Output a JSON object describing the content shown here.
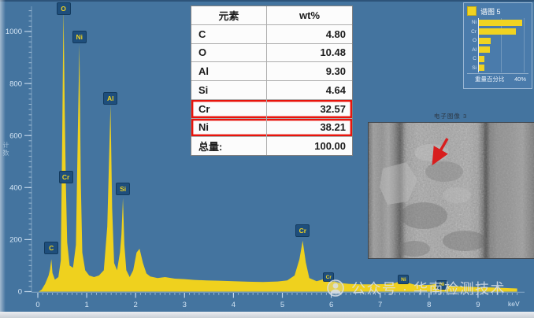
{
  "colors": {
    "background": "#44749F",
    "spectrum_fill": "#EFD11E",
    "marker_box": "#1E4E7C",
    "marker_text": "#F0D321",
    "axis": "#D3E4F4",
    "table_highlight_border": "#E8140C",
    "legend_bar": "#F0D321",
    "sem_arrow": "#D81E1E"
  },
  "chart_data": [
    {
      "type": "area",
      "xlabel": "keV",
      "ylabel": "计数",
      "xlim": [
        0,
        9.9
      ],
      "ylim": [
        0,
        1100
      ],
      "x_ticks": [
        0,
        1,
        2,
        3,
        4,
        5,
        6,
        7,
        8,
        9
      ],
      "y_ticks": [
        0,
        200,
        400,
        600,
        800,
        1000
      ],
      "grid": false,
      "series": [
        {
          "name": "谱图 5",
          "color": "#EFD11E",
          "points": [
            [
              0.02,
              0
            ],
            [
              0.08,
              8
            ],
            [
              0.15,
              30
            ],
            [
              0.22,
              62
            ],
            [
              0.25,
              85
            ],
            [
              0.277,
              125
            ],
            [
              0.3,
              72
            ],
            [
              0.35,
              46
            ],
            [
              0.42,
              56
            ],
            [
              0.47,
              120
            ],
            [
              0.5,
              600
            ],
            [
              0.525,
              1090
            ],
            [
              0.55,
              700
            ],
            [
              0.573,
              420
            ],
            [
              0.6,
              190
            ],
            [
              0.65,
              100
            ],
            [
              0.72,
              92
            ],
            [
              0.78,
              180
            ],
            [
              0.81,
              520
            ],
            [
              0.851,
              950
            ],
            [
              0.88,
              420
            ],
            [
              0.91,
              150
            ],
            [
              0.97,
              82
            ],
            [
              1.05,
              62
            ],
            [
              1.15,
              56
            ],
            [
              1.25,
              62
            ],
            [
              1.35,
              82
            ],
            [
              1.42,
              250
            ],
            [
              1.487,
              720
            ],
            [
              1.52,
              320
            ],
            [
              1.56,
              110
            ],
            [
              1.62,
              82
            ],
            [
              1.68,
              150
            ],
            [
              1.71,
              220
            ],
            [
              1.74,
              360
            ],
            [
              1.77,
              180
            ],
            [
              1.81,
              82
            ],
            [
              1.88,
              56
            ],
            [
              1.95,
              82
            ],
            [
              2.02,
              150
            ],
            [
              2.08,
              165
            ],
            [
              2.15,
              110
            ],
            [
              2.22,
              70
            ],
            [
              2.3,
              58
            ],
            [
              2.45,
              52
            ],
            [
              2.6,
              56
            ],
            [
              2.8,
              50
            ],
            [
              3.0,
              48
            ],
            [
              3.2,
              45
            ],
            [
              3.45,
              43
            ],
            [
              3.7,
              42
            ],
            [
              4.0,
              40
            ],
            [
              4.3,
              38
            ],
            [
              4.6,
              37
            ],
            [
              4.9,
              39
            ],
            [
              5.1,
              43
            ],
            [
              5.25,
              62
            ],
            [
              5.35,
              125
            ],
            [
              5.415,
              196
            ],
            [
              5.48,
              112
            ],
            [
              5.55,
              52
            ],
            [
              5.7,
              40
            ],
            [
              5.85,
              48
            ],
            [
              5.947,
              63
            ],
            [
              6.02,
              42
            ],
            [
              6.15,
              34
            ],
            [
              6.35,
              30
            ],
            [
              6.6,
              28
            ],
            [
              6.85,
              28
            ],
            [
              7.1,
              29
            ],
            [
              7.3,
              33
            ],
            [
              7.4,
              40
            ],
            [
              7.478,
              49
            ],
            [
              7.56,
              34
            ],
            [
              7.7,
              27
            ],
            [
              7.9,
              25
            ],
            [
              8.05,
              27
            ],
            [
              8.18,
              31
            ],
            [
              8.264,
              35
            ],
            [
              8.35,
              24
            ],
            [
              8.55,
              21
            ],
            [
              8.8,
              19
            ],
            [
              9.05,
              17
            ],
            [
              9.3,
              16
            ],
            [
              9.55,
              14
            ],
            [
              9.8,
              12
            ]
          ]
        }
      ],
      "peak_markers": [
        {
          "label": "C",
          "kev": 0.277,
          "counts": 168,
          "size": "lg"
        },
        {
          "label": "O",
          "kev": 0.525,
          "counts": 1088,
          "size": "lg"
        },
        {
          "label": "Cr",
          "kev": 0.573,
          "counts": 440,
          "size": "lg"
        },
        {
          "label": "Ni",
          "kev": 0.851,
          "counts": 978,
          "size": "lg"
        },
        {
          "label": "Al",
          "kev": 1.487,
          "counts": 743,
          "size": "lg"
        },
        {
          "label": "Si",
          "kev": 1.74,
          "counts": 395,
          "size": "lg"
        },
        {
          "label": "Cr",
          "kev": 5.415,
          "counts": 234,
          "size": "lg"
        },
        {
          "label": "Cr",
          "kev": 5.947,
          "counts": 56,
          "size": "sm"
        },
        {
          "label": "Ni",
          "kev": 7.478,
          "counts": 47,
          "size": "sm"
        },
        {
          "label": "Ni",
          "kev": 8.264,
          "counts": 26,
          "size": "sm"
        }
      ]
    },
    {
      "type": "bar",
      "orientation": "horizontal",
      "title": "谱图 5",
      "categories": [
        "Ni",
        "Cr",
        "O",
        "Al",
        "C",
        "Si"
      ],
      "values": [
        38.21,
        32.57,
        10.48,
        9.3,
        4.8,
        4.64
      ],
      "xlabel": "重量百分比",
      "xlim": [
        0,
        40
      ],
      "x_max_label": "40%",
      "legend_position": "top-right"
    }
  ],
  "table": {
    "headers": [
      "元素",
      "wt%"
    ],
    "rows": [
      [
        "C",
        "4.80"
      ],
      [
        "O",
        "10.48"
      ],
      [
        "Al",
        "9.30"
      ],
      [
        "Si",
        "4.64"
      ],
      [
        "Cr",
        "32.57"
      ],
      [
        "Ni",
        "38.21"
      ]
    ],
    "total_row": [
      "总量:",
      "100.00"
    ],
    "highlighted_elements": [
      "Cr",
      "Ni"
    ]
  },
  "sem": {
    "caption": "电子图像 3",
    "arrow_color": "#D81E1E"
  },
  "watermark": {
    "text": "公众号 · 华南检测技术"
  }
}
